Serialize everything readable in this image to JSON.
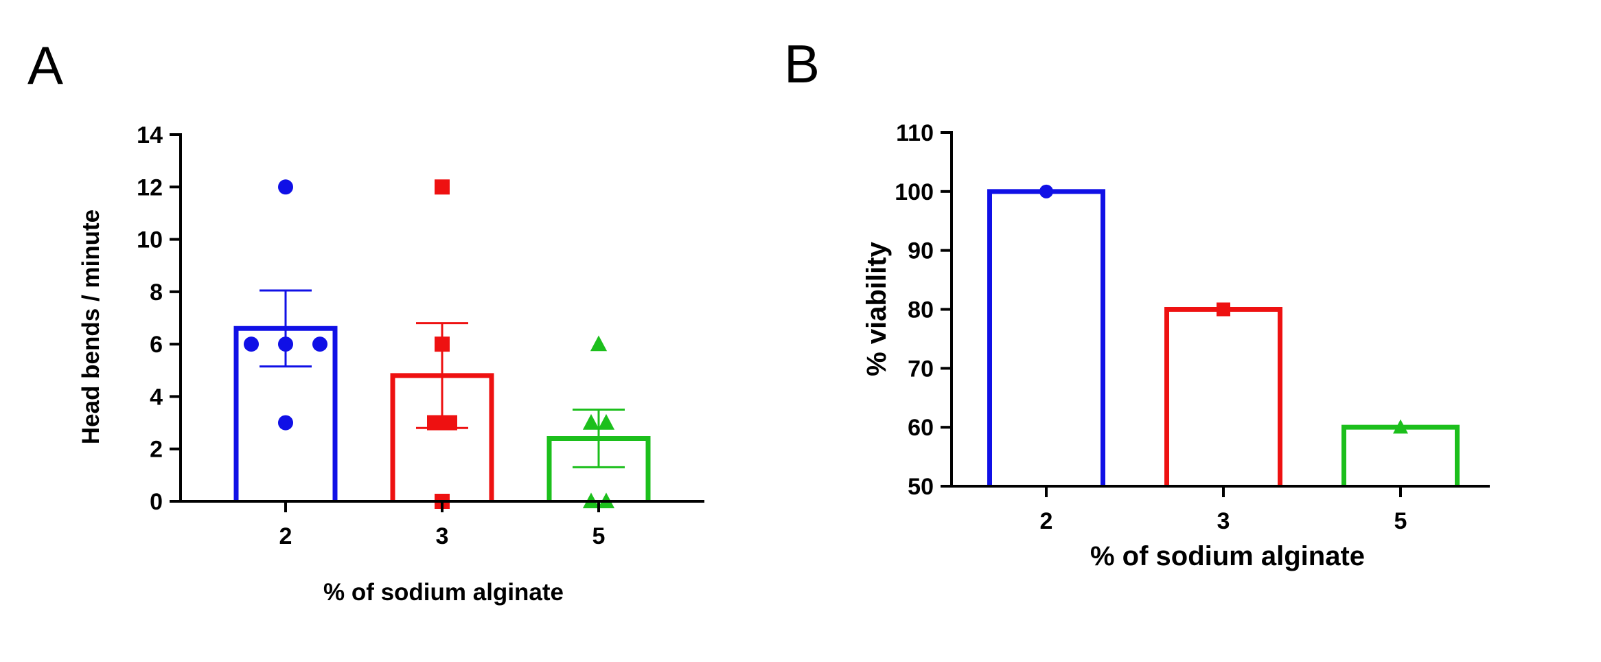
{
  "panels": {
    "a_label": "A",
    "b_label": "B"
  },
  "chart_data": [
    {
      "panel": "A",
      "type": "bar",
      "categories": [
        "2",
        "3",
        "5"
      ],
      "values": [
        6.6,
        4.8,
        2.4
      ],
      "error_sem": [
        1.45,
        2.0,
        1.1
      ],
      "points": [
        [
          12,
          6,
          6,
          6,
          3
        ],
        [
          12,
          6,
          3,
          3,
          0
        ],
        [
          6,
          3,
          3,
          0,
          0
        ]
      ],
      "colors": [
        "#1010e6",
        "#ee1111",
        "#1cbf1c"
      ],
      "markers": [
        "circle",
        "square",
        "triangle"
      ],
      "xlabel": "% of sodium alginate",
      "ylabel": "Head bends / minute",
      "ylim": [
        0,
        14
      ],
      "yticks": [
        0,
        2,
        4,
        6,
        8,
        10,
        12,
        14
      ],
      "grid": false
    },
    {
      "panel": "B",
      "type": "bar",
      "categories": [
        "2",
        "3",
        "5"
      ],
      "values": [
        100,
        80,
        60
      ],
      "colors": [
        "#1010e6",
        "#ee1111",
        "#1cbf1c"
      ],
      "markers": [
        "circle",
        "square",
        "triangle"
      ],
      "xlabel": "% of sodium alginate",
      "ylabel": "% viability",
      "ylim": [
        50,
        110
      ],
      "yticks": [
        50,
        60,
        70,
        80,
        90,
        100,
        110
      ],
      "grid": false
    }
  ]
}
